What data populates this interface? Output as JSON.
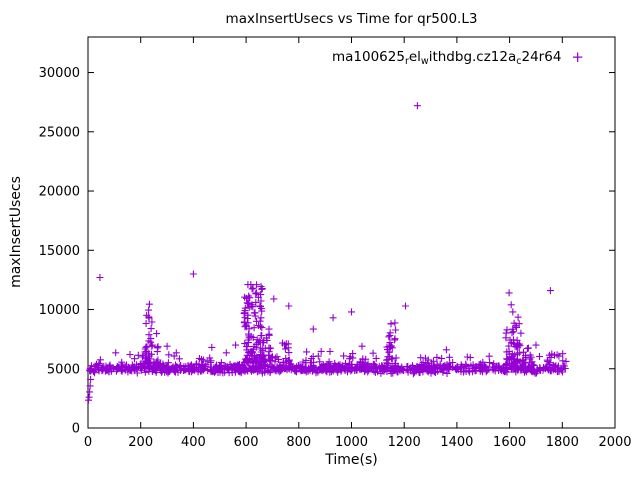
{
  "window": {
    "title": "maxInsertUsecs vs Time for qr500.L3"
  },
  "chart_data": {
    "type": "scatter",
    "title": "maxInsertUsecs vs Time for qr500.L3",
    "xlabel": "Time(s)",
    "ylabel": "maxInsertUsecs",
    "xlim": [
      0,
      2000
    ],
    "ylim": [
      0,
      33000
    ],
    "xticks": [
      0,
      200,
      400,
      600,
      800,
      1000,
      1200,
      1400,
      1600,
      1800,
      2000
    ],
    "yticks": [
      0,
      5000,
      10000,
      15000,
      20000,
      25000,
      30000
    ],
    "grid": false,
    "legend": {
      "label": "ma100625_rel_withdbg.cz12a_c24r64",
      "segments": [
        {
          "t": "ma100625",
          "sub": false
        },
        {
          "t": "r",
          "sub": true
        },
        {
          "t": "el",
          "sub": false
        },
        {
          "t": "w",
          "sub": true
        },
        {
          "t": "ithdbg.cz12a",
          "sub": false
        },
        {
          "t": "c",
          "sub": true
        },
        {
          "t": "24r64",
          "sub": false
        }
      ],
      "position": "top-right-inside",
      "marker_glyph": "+"
    },
    "marker": {
      "shape": "plus",
      "color": "#9400D3",
      "size": 7
    },
    "seed": 1337,
    "baseline": {
      "x_min": 2,
      "x_max": 1812,
      "count": 950,
      "y_center": 5050,
      "y_spread": 550
    },
    "bursts": [
      {
        "x_min": 215,
        "x_max": 245,
        "y_min": 5400,
        "y_max": 10500,
        "count": 34,
        "bias": 1.8
      },
      {
        "x_min": 246,
        "x_max": 266,
        "y_min": 5400,
        "y_max": 8000,
        "count": 8,
        "bias": 1.5
      },
      {
        "x_min": 30,
        "x_max": 590,
        "y_min": 5350,
        "y_max": 6300,
        "count": 26,
        "bias": 1.3
      },
      {
        "x_min": 592,
        "x_max": 668,
        "y_min": 5500,
        "y_max": 12200,
        "count": 120,
        "bias": 2.0
      },
      {
        "x_min": 650,
        "x_max": 700,
        "y_min": 5600,
        "y_max": 8500,
        "count": 30,
        "bias": 1.4
      },
      {
        "x_min": 700,
        "x_max": 780,
        "y_min": 5500,
        "y_max": 7200,
        "count": 20,
        "bias": 1.5
      },
      {
        "x_min": 800,
        "x_max": 1125,
        "y_min": 5350,
        "y_max": 6500,
        "count": 30,
        "bias": 1.4
      },
      {
        "x_min": 1130,
        "x_max": 1172,
        "y_min": 5400,
        "y_max": 8900,
        "count": 28,
        "bias": 1.6
      },
      {
        "x_min": 1250,
        "x_max": 1560,
        "y_min": 5350,
        "y_max": 6300,
        "count": 16,
        "bias": 1.3
      },
      {
        "x_min": 1585,
        "x_max": 1645,
        "y_min": 5400,
        "y_max": 9600,
        "count": 55,
        "bias": 1.7
      },
      {
        "x_min": 1645,
        "x_max": 1695,
        "y_min": 5400,
        "y_max": 7300,
        "count": 15,
        "bias": 1.4
      },
      {
        "x_min": 1695,
        "x_max": 1815,
        "y_min": 5350,
        "y_max": 6300,
        "count": 12,
        "bias": 1.3
      }
    ],
    "outliers": [
      [
        2,
        2350
      ],
      [
        4,
        2600
      ],
      [
        6,
        3050
      ],
      [
        8,
        3550
      ],
      [
        10,
        4100
      ],
      [
        45,
        12700
      ],
      [
        105,
        6350
      ],
      [
        230,
        9950
      ],
      [
        233,
        10450
      ],
      [
        300,
        6900
      ],
      [
        335,
        6350
      ],
      [
        400,
        13000
      ],
      [
        470,
        6800
      ],
      [
        525,
        6350
      ],
      [
        560,
        7000
      ],
      [
        614,
        11000
      ],
      [
        618,
        12100
      ],
      [
        622,
        10400
      ],
      [
        626,
        11800
      ],
      [
        631,
        9700
      ],
      [
        637,
        10600
      ],
      [
        705,
        10900
      ],
      [
        762,
        10300
      ],
      [
        855,
        8350
      ],
      [
        930,
        9300
      ],
      [
        1000,
        9800
      ],
      [
        1040,
        6900
      ],
      [
        1150,
        8800
      ],
      [
        1205,
        10300
      ],
      [
        1250,
        27200
      ],
      [
        1360,
        6600
      ],
      [
        1598,
        11400
      ],
      [
        1606,
        10400
      ],
      [
        1612,
        9800
      ],
      [
        1700,
        7000
      ],
      [
        1755,
        11600
      ]
    ]
  }
}
